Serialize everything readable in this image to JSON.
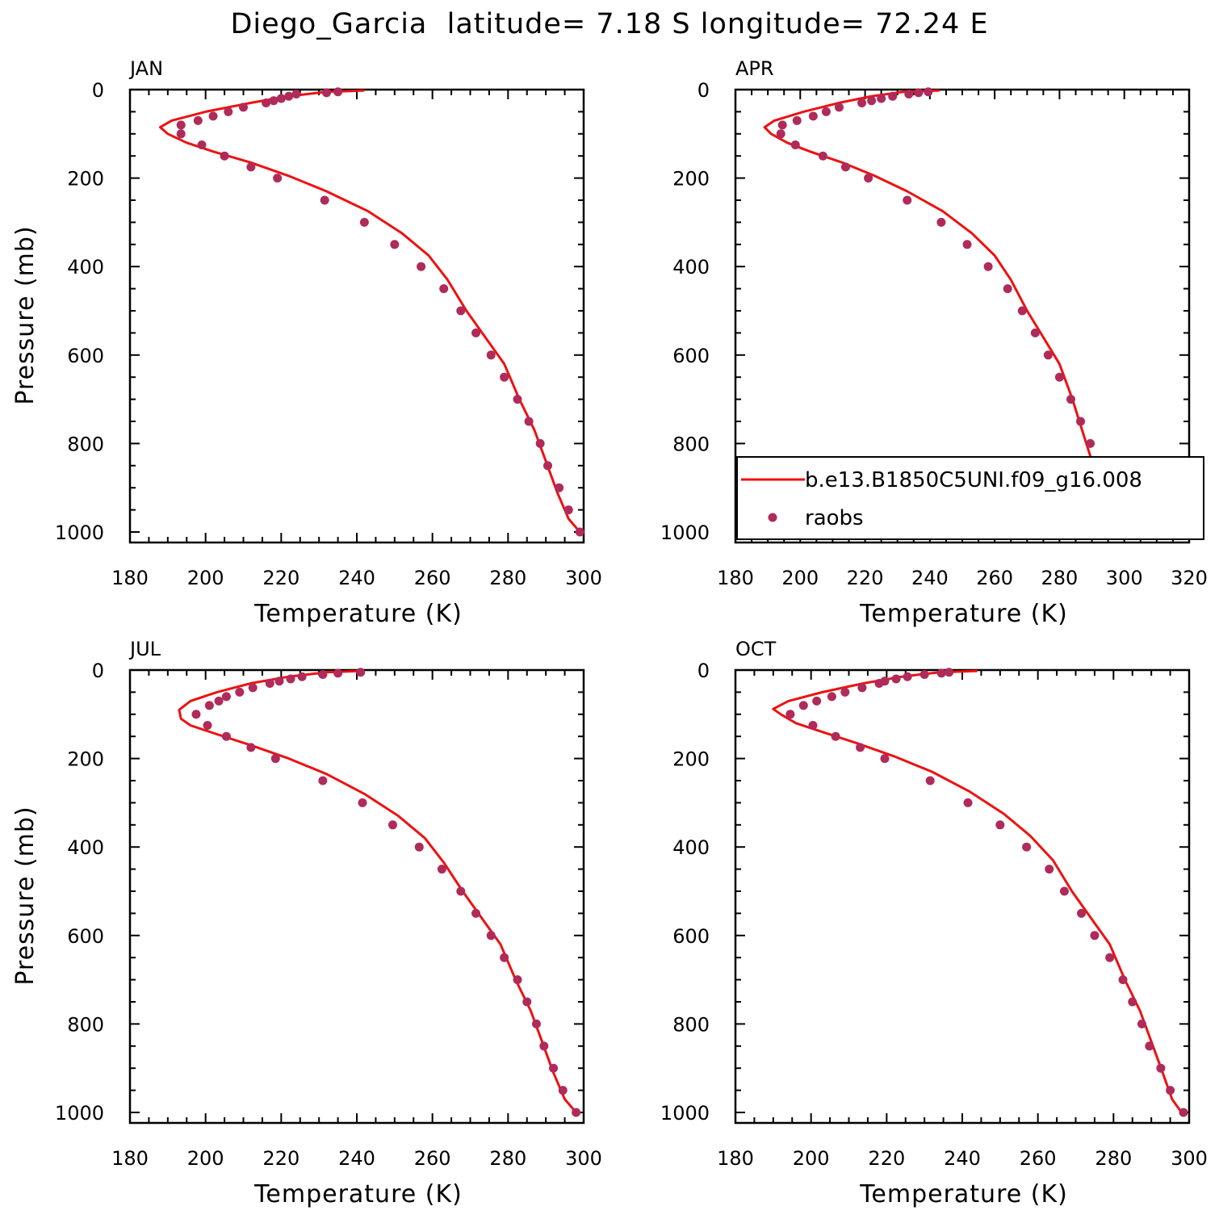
{
  "title": "Diego_Garcia  latitude= 7.18 S longitude= 72.24 E",
  "colors": {
    "model_line": "#ee1111",
    "raobs_marker": "#b02a5a",
    "axis": "#000000"
  },
  "legend": {
    "model_label": "b.e13.B1850C5UNI.f09_g16.008",
    "raobs_label": "raobs"
  },
  "chart_data": [
    {
      "type": "line",
      "panel": "JAN",
      "xlabel": "Temperature (K)",
      "ylabel": "Pressure (mb)",
      "xlim": [
        180,
        300
      ],
      "ylim": [
        1000,
        0
      ],
      "y_inverted": true,
      "xticks": [
        180,
        200,
        220,
        240,
        260,
        280,
        300
      ],
      "yticks": [
        0,
        200,
        400,
        600,
        800,
        1000
      ],
      "series": [
        {
          "name": "b.e13.B1850C5UNI.f09_g16.008",
          "style": "line",
          "x": [
            242,
            232,
            222,
            212,
            200,
            191,
            188,
            190,
            195,
            202,
            212,
            222,
            232,
            243,
            252,
            259,
            264,
            269,
            274,
            279,
            283,
            287,
            290,
            293,
            296,
            299
          ],
          "y": [
            2,
            5,
            15,
            30,
            50,
            70,
            85,
            100,
            120,
            140,
            165,
            195,
            230,
            275,
            325,
            375,
            430,
            500,
            560,
            620,
            700,
            770,
            840,
            910,
            970,
            1000
          ]
        },
        {
          "name": "raobs",
          "style": "markers",
          "x": [
            235,
            232,
            224,
            222,
            220,
            218,
            216,
            210,
            206,
            202,
            198,
            193.5,
            193.5,
            199,
            205,
            212,
            219,
            231.5,
            242,
            250,
            257,
            263,
            267.5,
            271.5,
            275.5,
            279,
            282.5,
            285.5,
            288.5,
            290.5,
            293.5,
            296,
            299
          ],
          "y": [
            5,
            7,
            10,
            15,
            20,
            25,
            30,
            40,
            50,
            60,
            70,
            80,
            100,
            125,
            150,
            175,
            200,
            250,
            300,
            350,
            400,
            450,
            500,
            550,
            600,
            650,
            700,
            750,
            800,
            850,
            900,
            950,
            1000
          ]
        }
      ]
    },
    {
      "type": "line",
      "panel": "APR",
      "xlabel": "Temperature (K)",
      "ylabel": "",
      "xlim": [
        180,
        320
      ],
      "ylim": [
        1000,
        0
      ],
      "y_inverted": true,
      "xticks": [
        180,
        200,
        220,
        240,
        260,
        280,
        300,
        320
      ],
      "yticks": [
        0,
        200,
        400,
        600,
        800,
        1000
      ],
      "series": [
        {
          "name": "b.e13.B1850C5UNI.f09_g16.008",
          "style": "line",
          "x": [
            243,
            232,
            222,
            212,
            201,
            192,
            189,
            191,
            196,
            203,
            213,
            223,
            233,
            244,
            253,
            260,
            265,
            270,
            275,
            280,
            284,
            287,
            290,
            293,
            296,
            300
          ],
          "y": [
            2,
            5,
            15,
            30,
            50,
            70,
            85,
            100,
            120,
            140,
            165,
            195,
            230,
            275,
            325,
            375,
            430,
            500,
            560,
            620,
            700,
            770,
            840,
            910,
            970,
            1000
          ]
        },
        {
          "name": "raobs",
          "style": "markers",
          "x": [
            239.5,
            236.5,
            233.5,
            228.5,
            225,
            222,
            219,
            212,
            208,
            204,
            199,
            194.5,
            194,
            198.5,
            207,
            214,
            221,
            233,
            243.5,
            251.5,
            258,
            264,
            268.5,
            272.5,
            276.5,
            280,
            283.5,
            286.5,
            289.5,
            291.5,
            294,
            297.5,
            301
          ],
          "y": [
            5,
            7,
            10,
            15,
            20,
            25,
            30,
            40,
            50,
            60,
            70,
            80,
            100,
            125,
            150,
            175,
            200,
            250,
            300,
            350,
            400,
            450,
            500,
            550,
            600,
            650,
            700,
            750,
            800,
            850,
            900,
            950,
            1000
          ]
        }
      ]
    },
    {
      "type": "line",
      "panel": "JUL",
      "xlabel": "Temperature (K)",
      "ylabel": "Pressure (mb)",
      "xlim": [
        180,
        300
      ],
      "ylim": [
        1000,
        0
      ],
      "y_inverted": true,
      "xticks": [
        180,
        200,
        220,
        240,
        260,
        280,
        300
      ],
      "yticks": [
        0,
        200,
        400,
        600,
        800,
        1000
      ],
      "series": [
        {
          "name": "b.e13.B1850C5UNI.f09_g16.008",
          "style": "line",
          "x": [
            241,
            232,
            222,
            212,
            203,
            196,
            193,
            193.5,
            196,
            203,
            212,
            222,
            232,
            242,
            251,
            258,
            263,
            268,
            273,
            278,
            282,
            286,
            289,
            292,
            295,
            298
          ],
          "y": [
            2,
            5,
            15,
            30,
            50,
            70,
            90,
            110,
            125,
            145,
            170,
            200,
            235,
            280,
            330,
            380,
            435,
            500,
            560,
            620,
            700,
            770,
            840,
            910,
            970,
            1000
          ]
        },
        {
          "name": "raobs",
          "style": "markers",
          "x": [
            241,
            235,
            231,
            225.5,
            222.5,
            219.5,
            217,
            212.5,
            209,
            205.5,
            203.5,
            201,
            197.5,
            200.5,
            205.5,
            212,
            218.5,
            231,
            241.5,
            249.5,
            256.5,
            262.5,
            267.5,
            271.5,
            275.5,
            279,
            282.5,
            285,
            287.5,
            289.5,
            292,
            294.5,
            298
          ],
          "y": [
            5,
            7,
            10,
            15,
            20,
            25,
            30,
            40,
            50,
            60,
            70,
            80,
            100,
            125,
            150,
            175,
            200,
            250,
            300,
            350,
            400,
            450,
            500,
            550,
            600,
            650,
            700,
            750,
            800,
            850,
            900,
            950,
            1000
          ]
        }
      ]
    },
    {
      "type": "line",
      "panel": "OCT",
      "xlabel": "Temperature (K)",
      "ylabel": "",
      "xlim": [
        180,
        300
      ],
      "ylim": [
        1000,
        0
      ],
      "y_inverted": true,
      "xticks": [
        180,
        200,
        220,
        240,
        260,
        280,
        300
      ],
      "yticks": [
        0,
        200,
        400,
        600,
        800,
        1000
      ],
      "series": [
        {
          "name": "b.e13.B1850C5UNI.f09_g16.008",
          "style": "line",
          "x": [
            244,
            234,
            224,
            214,
            203,
            194,
            190,
            192,
            196,
            203,
            212,
            222,
            232,
            242,
            251,
            258,
            264,
            269,
            274,
            279,
            283,
            287,
            290,
            293,
            295.5,
            298
          ],
          "y": [
            2,
            5,
            15,
            30,
            50,
            70,
            88,
            100,
            120,
            140,
            165,
            195,
            230,
            275,
            325,
            375,
            430,
            500,
            560,
            620,
            700,
            770,
            840,
            910,
            970,
            1000
          ]
        },
        {
          "name": "raobs",
          "style": "markers",
          "x": [
            236.5,
            234.5,
            230,
            225.5,
            222.5,
            219.5,
            218,
            213.5,
            209,
            205.5,
            201.5,
            198,
            194.5,
            200.5,
            206.5,
            213,
            219.5,
            231.5,
            241.5,
            250,
            257,
            263,
            267,
            271.5,
            275,
            279,
            282.5,
            285,
            287.5,
            289.5,
            292.5,
            295,
            298.5
          ],
          "y": [
            5,
            7,
            10,
            15,
            20,
            25,
            30,
            40,
            50,
            60,
            70,
            80,
            100,
            125,
            150,
            175,
            200,
            250,
            300,
            350,
            400,
            450,
            500,
            550,
            600,
            650,
            700,
            750,
            800,
            850,
            900,
            950,
            1000
          ]
        }
      ]
    }
  ]
}
